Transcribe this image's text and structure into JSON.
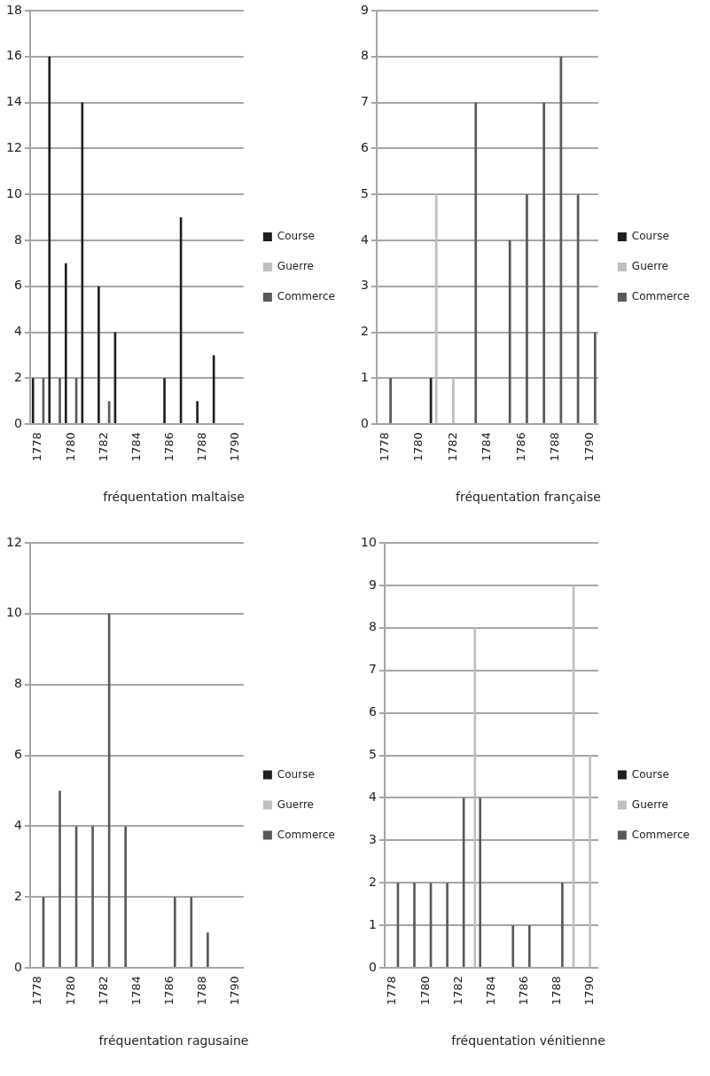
{
  "chart_data": [
    {
      "type": "bar",
      "title": "fréquentation maltaise",
      "categories": [
        "1778",
        null,
        "1780",
        null,
        "1782",
        null,
        "1784",
        null,
        "1786",
        null,
        "1788",
        null,
        "1790"
      ],
      "ylim": [
        0,
        18
      ],
      "yticks": [
        0,
        2,
        4,
        6,
        8,
        10,
        12,
        14,
        16,
        18
      ],
      "grid": "y",
      "legend": "right",
      "series": [
        {
          "name": "Course",
          "color": "#1f1f1f",
          "values": [
            2,
            16,
            7,
            14,
            6,
            4,
            null,
            null,
            2,
            9,
            1,
            3,
            null
          ]
        },
        {
          "name": "Guerre",
          "color": "#bfbfbf",
          "values": [
            null,
            null,
            null,
            null,
            null,
            null,
            null,
            null,
            null,
            null,
            null,
            null,
            null
          ]
        },
        {
          "name": "Commerce",
          "color": "#595959",
          "values": [
            2,
            2,
            2,
            null,
            1,
            null,
            null,
            null,
            null,
            null,
            null,
            null,
            null
          ]
        }
      ]
    },
    {
      "type": "bar",
      "title": "fréquentation française",
      "categories": [
        "1778",
        null,
        "1780",
        null,
        "1782",
        null,
        "1784",
        null,
        "1786",
        null,
        "1788",
        null,
        "1790"
      ],
      "ylim": [
        0,
        9
      ],
      "yticks": [
        0,
        1,
        2,
        3,
        4,
        5,
        6,
        7,
        8,
        9
      ],
      "grid": "y",
      "legend": "right",
      "series": [
        {
          "name": "Course",
          "color": "#1f1f1f",
          "values": [
            null,
            null,
            null,
            1,
            null,
            null,
            null,
            null,
            null,
            null,
            null,
            null,
            null
          ]
        },
        {
          "name": "Guerre",
          "color": "#bfbfbf",
          "values": [
            null,
            null,
            null,
            5,
            1,
            null,
            null,
            null,
            null,
            null,
            null,
            null,
            null
          ]
        },
        {
          "name": "Commerce",
          "color": "#595959",
          "values": [
            1,
            null,
            null,
            null,
            null,
            7,
            null,
            4,
            5,
            7,
            8,
            5,
            2
          ]
        }
      ]
    },
    {
      "type": "bar",
      "title": "fréquentation ragusaine",
      "categories": [
        "1778",
        null,
        "1780",
        null,
        "1782",
        null,
        "1784",
        null,
        "1786",
        null,
        "1788",
        null,
        "1790"
      ],
      "ylim": [
        0,
        12
      ],
      "yticks": [
        0,
        2,
        4,
        6,
        8,
        10,
        12
      ],
      "grid": "y",
      "legend": "right",
      "series": [
        {
          "name": "Course",
          "color": "#1f1f1f",
          "values": [
            null,
            null,
            null,
            null,
            null,
            null,
            null,
            null,
            null,
            null,
            null,
            null,
            null
          ]
        },
        {
          "name": "Guerre",
          "color": "#bfbfbf",
          "values": [
            null,
            null,
            null,
            null,
            null,
            null,
            null,
            null,
            null,
            null,
            null,
            null,
            null
          ]
        },
        {
          "name": "Commerce",
          "color": "#595959",
          "values": [
            2,
            5,
            4,
            4,
            10,
            4,
            null,
            null,
            2,
            2,
            1,
            null,
            null
          ]
        }
      ]
    },
    {
      "type": "bar",
      "title": "fréquentation vénitienne",
      "categories": [
        "1778",
        null,
        "1780",
        null,
        "1782",
        null,
        "1784",
        null,
        "1786",
        null,
        "1788",
        null,
        "1790"
      ],
      "ylim": [
        0,
        10
      ],
      "yticks": [
        0,
        1,
        2,
        3,
        4,
        5,
        6,
        7,
        8,
        9,
        10
      ],
      "grid": "y",
      "legend": "right",
      "series": [
        {
          "name": "Course",
          "color": "#1f1f1f",
          "values": [
            null,
            null,
            null,
            null,
            null,
            null,
            null,
            null,
            null,
            null,
            null,
            null,
            null
          ]
        },
        {
          "name": "Guerre",
          "color": "#bfbfbf",
          "values": [
            null,
            null,
            null,
            null,
            null,
            8,
            null,
            null,
            null,
            null,
            null,
            9,
            5
          ]
        },
        {
          "name": "Commerce",
          "color": "#595959",
          "values": [
            2,
            2,
            2,
            2,
            4,
            4,
            null,
            1,
            1,
            null,
            2,
            null,
            null
          ]
        }
      ]
    }
  ]
}
